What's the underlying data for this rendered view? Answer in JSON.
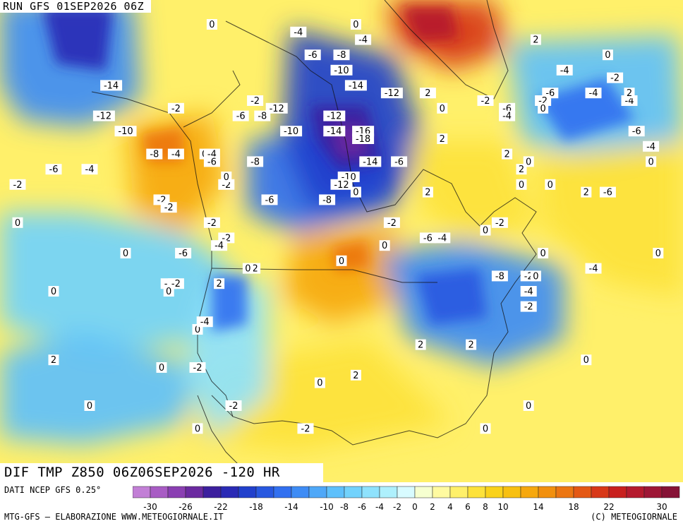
{
  "header": {
    "run_title": "RUN GFS 01SEP2026 06Z"
  },
  "map": {
    "field_title": "DIF TMP Z850 06Z06SEP2026 -120 HR",
    "contour_labels": [
      {
        "v": "-14",
        "lon": -132,
        "lat": 62
      },
      {
        "v": "-12",
        "lon": -133,
        "lat": 58
      },
      {
        "v": "-10",
        "lon": -130,
        "lat": 56
      },
      {
        "v": "-8",
        "lon": -150,
        "lat": 56
      },
      {
        "v": "-6",
        "lon": -150,
        "lat": 54
      },
      {
        "v": "-4",
        "lon": -156,
        "lat": 56
      },
      {
        "v": "-2",
        "lon": -123,
        "lat": 59
      },
      {
        "v": "-8",
        "lon": -126,
        "lat": 53
      },
      {
        "v": "-4",
        "lon": -123,
        "lat": 53
      },
      {
        "v": "0",
        "lon": -119,
        "lat": 53
      },
      {
        "v": "-6",
        "lon": -140,
        "lat": 51
      },
      {
        "v": "-4",
        "lon": -135,
        "lat": 51
      },
      {
        "v": "0",
        "lon": -164,
        "lat": 51
      },
      {
        "v": "-2",
        "lon": -145,
        "lat": 49
      },
      {
        "v": "-2",
        "lon": -125,
        "lat": 47
      },
      {
        "v": "0",
        "lon": -145,
        "lat": 44
      },
      {
        "v": "0",
        "lon": -150,
        "lat": 40
      },
      {
        "v": "0",
        "lon": -130,
        "lat": 40
      },
      {
        "v": "0",
        "lon": -140,
        "lat": 35
      },
      {
        "v": "0",
        "lon": -150,
        "lat": 32
      },
      {
        "v": "0",
        "lon": -120,
        "lat": 30
      },
      {
        "v": "2",
        "lon": -140,
        "lat": 26
      },
      {
        "v": "0",
        "lon": -125,
        "lat": 25
      },
      {
        "v": "-2",
        "lon": -120,
        "lat": 25
      },
      {
        "v": "-2",
        "lon": -115,
        "lat": 20
      },
      {
        "v": "0",
        "lon": -135,
        "lat": 20
      },
      {
        "v": "0",
        "lon": -148,
        "lat": 20
      },
      {
        "v": "0",
        "lon": -120,
        "lat": 17
      },
      {
        "v": "-2",
        "lon": -105,
        "lat": 17
      },
      {
        "v": "0",
        "lon": -103,
        "lat": 23
      },
      {
        "v": "2",
        "lon": -98,
        "lat": 24
      },
      {
        "v": "2",
        "lon": -89,
        "lat": 28
      },
      {
        "v": "2",
        "lon": -82,
        "lat": 28
      },
      {
        "v": "0",
        "lon": -80,
        "lat": 17
      },
      {
        "v": "0",
        "lon": -74,
        "lat": 20
      },
      {
        "v": "0",
        "lon": -66,
        "lat": 26
      },
      {
        "v": "-2",
        "lon": -74,
        "lat": 33
      },
      {
        "v": "-4",
        "lon": -74,
        "lat": 35
      },
      {
        "v": "-2",
        "lon": -74,
        "lat": 37
      },
      {
        "v": "-4",
        "lon": -65,
        "lat": 38
      },
      {
        "v": "-8",
        "lon": -78,
        "lat": 37
      },
      {
        "v": "-4",
        "lon": -86,
        "lat": 42
      },
      {
        "v": "-6",
        "lon": -88,
        "lat": 42
      },
      {
        "v": "-2",
        "lon": -93,
        "lat": 44
      },
      {
        "v": "0",
        "lon": -94,
        "lat": 41
      },
      {
        "v": "0",
        "lon": -100,
        "lat": 39
      },
      {
        "v": "-2",
        "lon": -116,
        "lat": 42
      },
      {
        "v": "2",
        "lon": -112,
        "lat": 38
      },
      {
        "v": "-6",
        "lon": -122,
        "lat": 40
      },
      {
        "v": "-4",
        "lon": -117,
        "lat": 41
      },
      {
        "v": "0",
        "lon": -113,
        "lat": 38
      },
      {
        "v": "-2",
        "lon": -124,
        "lat": 36
      },
      {
        "v": "-2",
        "lon": -123,
        "lat": 36
      },
      {
        "v": "0",
        "lon": -124,
        "lat": 35
      },
      {
        "v": "2",
        "lon": -117,
        "lat": 36
      },
      {
        "v": "-4",
        "lon": -119,
        "lat": 31
      },
      {
        "v": "-6",
        "lon": -110,
        "lat": 47
      },
      {
        "v": "-2",
        "lon": -116,
        "lat": 49
      },
      {
        "v": "0",
        "lon": -116,
        "lat": 50
      },
      {
        "v": "-2",
        "lon": -118,
        "lat": 44
      },
      {
        "v": "-2",
        "lon": -124,
        "lat": 46
      },
      {
        "v": "-4",
        "lon": -118,
        "lat": 53
      },
      {
        "v": "-6",
        "lon": -118,
        "lat": 52
      },
      {
        "v": "-8",
        "lon": -112,
        "lat": 52
      },
      {
        "v": "-10",
        "lon": -107,
        "lat": 56
      },
      {
        "v": "-12",
        "lon": -101,
        "lat": 58
      },
      {
        "v": "-14",
        "lon": -101,
        "lat": 56
      },
      {
        "v": "-16",
        "lon": -97,
        "lat": 56
      },
      {
        "v": "-18",
        "lon": -97,
        "lat": 55
      },
      {
        "v": "-14",
        "lon": -96,
        "lat": 52
      },
      {
        "v": "-6",
        "lon": -92,
        "lat": 52
      },
      {
        "v": "-12",
        "lon": -93,
        "lat": 61
      },
      {
        "v": "-14",
        "lon": -98,
        "lat": 62
      },
      {
        "v": "-10",
        "lon": -100,
        "lat": 64
      },
      {
        "v": "-6",
        "lon": -104,
        "lat": 66
      },
      {
        "v": "-8",
        "lon": -100,
        "lat": 66
      },
      {
        "v": "-4",
        "lon": -106,
        "lat": 69
      },
      {
        "v": "-4",
        "lon": -97,
        "lat": 68
      },
      {
        "v": "0",
        "lon": -98,
        "lat": 70
      },
      {
        "v": "0",
        "lon": -118,
        "lat": 70
      },
      {
        "v": "-8",
        "lon": -111,
        "lat": 58
      },
      {
        "v": "-12",
        "lon": -109,
        "lat": 59
      },
      {
        "v": "-6",
        "lon": -114,
        "lat": 58
      },
      {
        "v": "-2",
        "lon": -112,
        "lat": 60
      },
      {
        "v": "-10",
        "lon": -99,
        "lat": 50
      },
      {
        "v": "-12",
        "lon": -100,
        "lat": 49
      },
      {
        "v": "-8",
        "lon": -102,
        "lat": 47
      },
      {
        "v": "0",
        "lon": -98,
        "lat": 48
      },
      {
        "v": "2",
        "lon": -88,
        "lat": 48
      },
      {
        "v": "2",
        "lon": -86,
        "lat": 55
      },
      {
        "v": "-2",
        "lon": -88,
        "lat": 61
      },
      {
        "v": "2",
        "lon": -88,
        "lat": 61
      },
      {
        "v": "0",
        "lon": -86,
        "lat": 59
      },
      {
        "v": "2",
        "lon": -75,
        "lat": 51
      },
      {
        "v": "0",
        "lon": -75,
        "lat": 49
      },
      {
        "v": "0",
        "lon": -71,
        "lat": 49
      },
      {
        "v": "-2",
        "lon": -78,
        "lat": 44
      },
      {
        "v": "0",
        "lon": -80,
        "lat": 43
      },
      {
        "v": "0",
        "lon": -72,
        "lat": 40
      },
      {
        "v": "2",
        "lon": -73,
        "lat": 68
      },
      {
        "v": "0",
        "lon": -63,
        "lat": 66
      },
      {
        "v": "-4",
        "lon": -69,
        "lat": 64
      },
      {
        "v": "-2",
        "lon": -62,
        "lat": 63
      },
      {
        "v": "-4",
        "lon": -65,
        "lat": 61
      },
      {
        "v": "-6",
        "lon": -71,
        "lat": 61
      },
      {
        "v": "-2",
        "lon": -72,
        "lat": 60
      },
      {
        "v": "0",
        "lon": -72,
        "lat": 59
      },
      {
        "v": "-4",
        "lon": -60,
        "lat": 60
      },
      {
        "v": "-6",
        "lon": -59,
        "lat": 56
      },
      {
        "v": "-4",
        "lon": -57,
        "lat": 54
      },
      {
        "v": "0",
        "lon": -57,
        "lat": 52
      },
      {
        "v": "2",
        "lon": -66,
        "lat": 48
      },
      {
        "v": "-6",
        "lon": -63,
        "lat": 48
      },
      {
        "v": "0",
        "lon": -56,
        "lat": 40
      },
      {
        "v": "2",
        "lon": -60,
        "lat": 61
      },
      {
        "v": "-6",
        "lon": -77,
        "lat": 59
      },
      {
        "v": "-2",
        "lon": -80,
        "lat": 60
      },
      {
        "v": "-4",
        "lon": -77,
        "lat": 58
      },
      {
        "v": "2",
        "lon": -77,
        "lat": 53
      },
      {
        "v": "0",
        "lon": -74,
        "lat": 52
      },
      {
        "v": "0",
        "lon": -73,
        "lat": 37
      }
    ]
  },
  "legend": {
    "ticks": [
      "-30",
      "-26",
      "-22",
      "-18",
      "-14",
      "-10",
      "-8",
      "-6",
      "-4",
      "-2",
      "0",
      "2",
      "4",
      "6",
      "8",
      "10",
      "14",
      "18",
      "22",
      "30"
    ],
    "colors": [
      "#c27fd6",
      "#a85cc4",
      "#8a3fb2",
      "#6b2aa0",
      "#3c1f9e",
      "#2a2ab5",
      "#2140cc",
      "#2858e0",
      "#3270f0",
      "#3e8cf5",
      "#4fa8f8",
      "#5ec0fb",
      "#72d2fc",
      "#8ee2fd",
      "#aef0fd",
      "#d8fbff",
      "#f6ffd0",
      "#fffaa0",
      "#fff06a",
      "#fde23a",
      "#fad21a",
      "#f8c010",
      "#f6a80e",
      "#f2900e",
      "#ec7612",
      "#e45814",
      "#d83818",
      "#c8201e",
      "#b51a2e",
      "#9e1636",
      "#861236"
    ]
  },
  "footer": {
    "source_note": "DATI NCEP GFS 0.25°",
    "credit_left": "MTG-GFS – ELABORAZIONE WWW.METEOGIORNALE.IT",
    "credit_right": "(C) METEOGIORNALE"
  }
}
